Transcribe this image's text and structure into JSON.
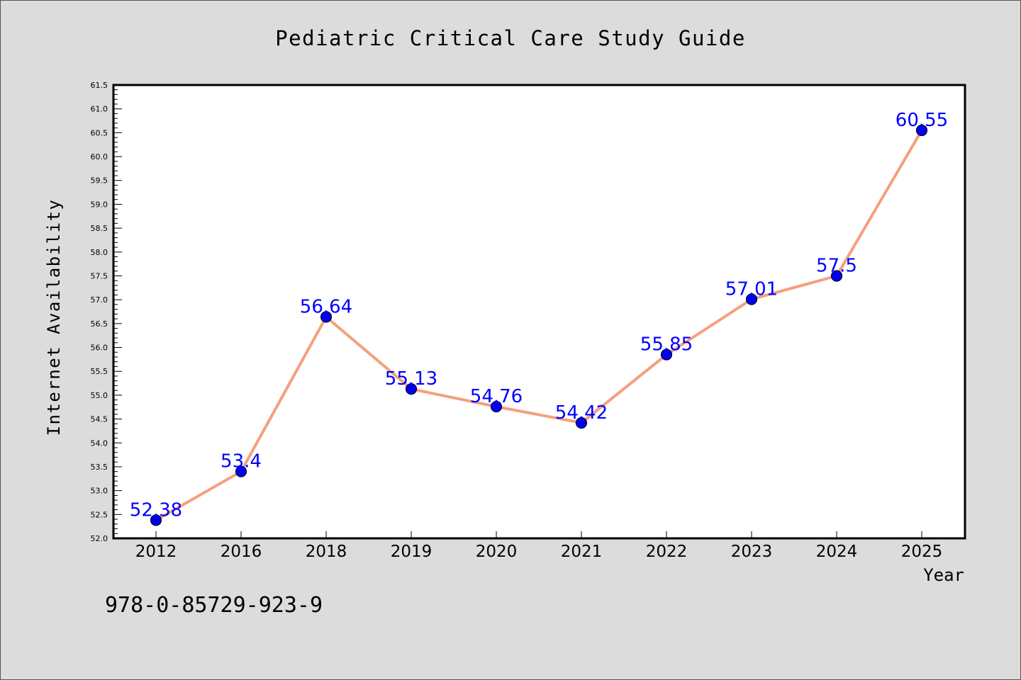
{
  "footer_text": "978-0-85729-923-9",
  "colors": {
    "background": "#dcdcdc",
    "plot_background": "#ffffff",
    "line": "#f4a07e",
    "marker": "#0000ee",
    "label": "#0000ff",
    "text": "#000000"
  },
  "chart_data": {
    "type": "line",
    "title": "Pediatric Critical Care Study Guide",
    "xlabel": "Year",
    "ylabel": "Internet Availability",
    "categories": [
      "2012",
      "2016",
      "2018",
      "2019",
      "2020",
      "2021",
      "2022",
      "2023",
      "2024",
      "2025"
    ],
    "series": [
      {
        "values": [
          52.38,
          53.4,
          56.64,
          55.13,
          54.76,
          54.42,
          55.85,
          57.01,
          57.5,
          60.55
        ],
        "labels": [
          "52.38",
          "53.4",
          "56.64",
          "55.13",
          "54.76",
          "54.42",
          "55.85",
          "57.01",
          "57.5",
          "60.55"
        ]
      }
    ],
    "ylim": [
      52.0,
      61.5
    ],
    "y_major_step": 0.5,
    "y_minor_step": 0.1,
    "grid": false,
    "legend": "none"
  }
}
